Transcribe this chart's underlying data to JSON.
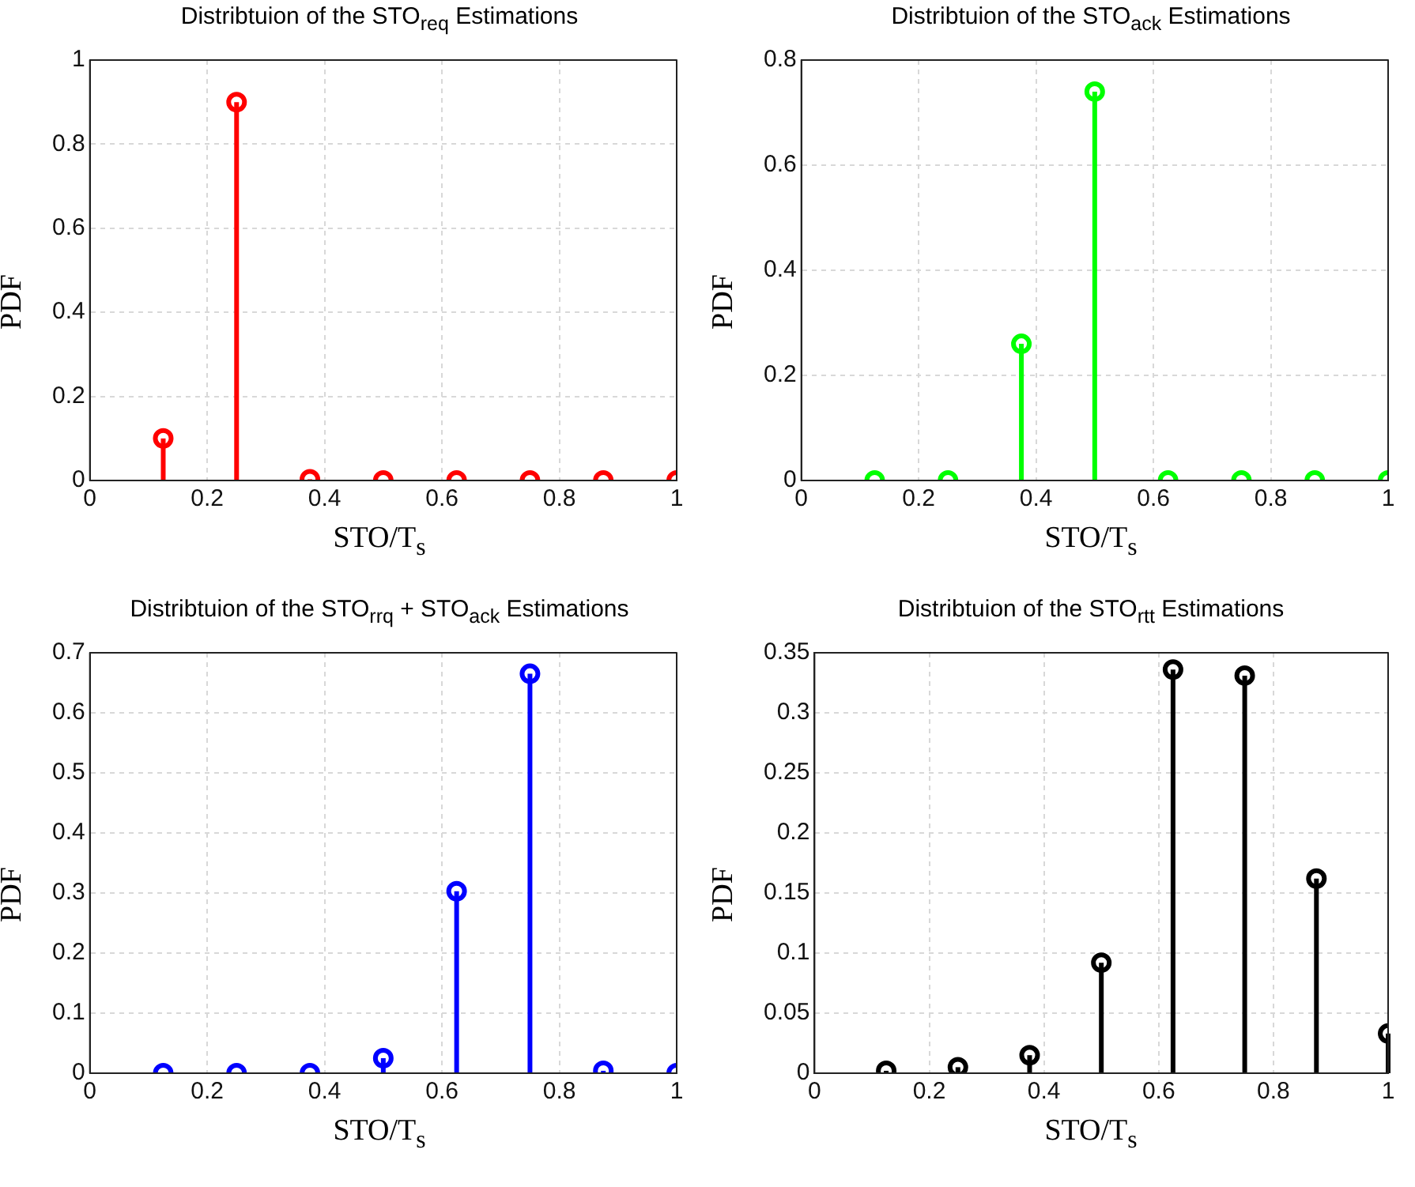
{
  "chart_data": [
    {
      "type": "lollipop",
      "title": "Distribtuion of the STO$_{req}$ Estimations",
      "xlabel": "STO/T$_{s}$",
      "ylabel": "PDF",
      "x": [
        0.125,
        0.25,
        0.375,
        0.5,
        0.625,
        0.75,
        0.875,
        1
      ],
      "series": [
        {
          "color": "#ff0000",
          "values": [
            0.1,
            0.9,
            0.003,
            0,
            0,
            0,
            0,
            0
          ]
        }
      ],
      "xlim": [
        0,
        1
      ],
      "xticks": [
        0,
        0.2,
        0.4,
        0.6,
        0.8,
        1
      ],
      "ylim": [
        0,
        1
      ],
      "yticks": [
        0,
        0.2,
        0.4,
        0.6,
        0.8,
        1
      ],
      "grid": true,
      "marker": "circle",
      "line_style": "solid"
    },
    {
      "type": "lollipop",
      "title": "Distribtuion of the STO$_{ack}$ Estimations",
      "xlabel": "STO/T$_{s}$",
      "ylabel": "PDF",
      "x": [
        0.125,
        0.25,
        0.375,
        0.5,
        0.625,
        0.75,
        0.875,
        1
      ],
      "series": [
        {
          "color": "#00ff00",
          "values": [
            0,
            0,
            0.26,
            0.74,
            0,
            0,
            0,
            0
          ]
        }
      ],
      "xlim": [
        0,
        1
      ],
      "xticks": [
        0,
        0.2,
        0.4,
        0.6,
        0.8,
        1
      ],
      "ylim": [
        0,
        0.8
      ],
      "yticks": [
        0,
        0.2,
        0.4,
        0.6,
        0.8
      ],
      "grid": true,
      "marker": "circle",
      "line_style": "solid"
    },
    {
      "type": "lollipop",
      "title": "Distribtuion of the STO$_{rrq}$ + STO$_{ack}$ Estimations",
      "xlabel": "STO/T$_{s}$",
      "ylabel": "PDF",
      "x": [
        0.125,
        0.25,
        0.375,
        0.5,
        0.625,
        0.75,
        0.875,
        1
      ],
      "series": [
        {
          "color": "#0000ff",
          "values": [
            0,
            0,
            0,
            0.025,
            0.303,
            0.665,
            0.004,
            0
          ]
        }
      ],
      "xlim": [
        0,
        1
      ],
      "xticks": [
        0,
        0.2,
        0.4,
        0.6,
        0.8,
        1
      ],
      "ylim": [
        0,
        0.7
      ],
      "yticks": [
        0,
        0.1,
        0.2,
        0.3,
        0.4,
        0.5,
        0.6,
        0.7
      ],
      "grid": true,
      "marker": "circle",
      "line_style": "solid"
    },
    {
      "type": "lollipop",
      "title": "Distribtuion of the STO$_{rtt}$ Estimations",
      "xlabel": "STO/T$_{s}$",
      "ylabel": "PDF",
      "x": [
        0.125,
        0.25,
        0.375,
        0.5,
        0.625,
        0.75,
        0.875,
        1
      ],
      "series": [
        {
          "color": "#000000",
          "values": [
            0.002,
            0.005,
            0.015,
            0.092,
            0.336,
            0.331,
            0.162,
            0.033
          ]
        }
      ],
      "xlim": [
        0,
        1
      ],
      "xticks": [
        0,
        0.2,
        0.4,
        0.6,
        0.8,
        1
      ],
      "ylim": [
        0,
        0.35
      ],
      "yticks": [
        0,
        0.05,
        0.1,
        0.15,
        0.2,
        0.25,
        0.3,
        0.35
      ],
      "grid": true,
      "marker": "circle",
      "line_style": "solid"
    }
  ]
}
